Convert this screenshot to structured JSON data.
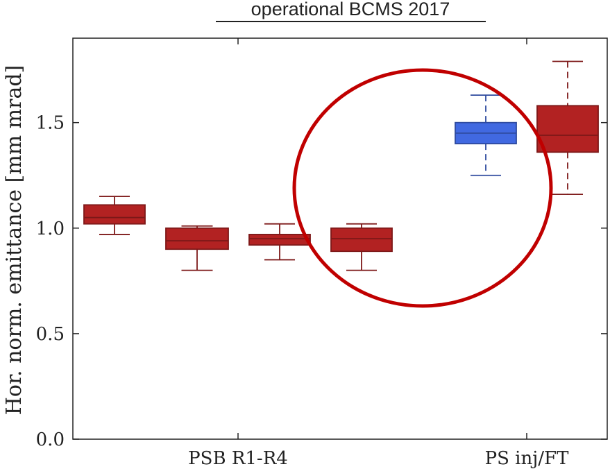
{
  "chart_data": {
    "type": "box",
    "title": "operational BCMS 2017",
    "xlabel": "",
    "ylabel": "Hor. norm. emittance [mm mrad]",
    "ylim": [
      0.0,
      1.9
    ],
    "yticks": [
      0.0,
      0.5,
      1.0,
      1.5
    ],
    "ytick_labels": [
      "0.0",
      "0.5",
      "1.0",
      "1.5"
    ],
    "categories": [
      "PSB R1-R4",
      "PS inj/FT"
    ],
    "grid": false,
    "boxes": [
      {
        "group": "PSB R1-R4",
        "color": "#b22222",
        "whisker_low": 0.97,
        "q1": 1.02,
        "median": 1.05,
        "q3": 1.11,
        "whisker_high": 1.15
      },
      {
        "group": "PSB R1-R4",
        "color": "#b22222",
        "whisker_low": 0.8,
        "q1": 0.9,
        "median": 0.94,
        "q3": 1.0,
        "whisker_high": 1.01
      },
      {
        "group": "PSB R1-R4",
        "color": "#b22222",
        "whisker_low": 0.85,
        "q1": 0.92,
        "median": 0.95,
        "q3": 0.97,
        "whisker_high": 1.02
      },
      {
        "group": "PSB R1-R4",
        "color": "#b22222",
        "whisker_low": 0.8,
        "q1": 0.89,
        "median": 0.95,
        "q3": 1.0,
        "whisker_high": 1.02
      },
      {
        "group": "PS inj/FT",
        "color": "#4169e1",
        "whisker_low": 1.25,
        "q1": 1.4,
        "median": 1.45,
        "q3": 1.5,
        "whisker_high": 1.63
      },
      {
        "group": "PS inj/FT",
        "color": "#b22222",
        "whisker_low": 1.16,
        "q1": 1.36,
        "median": 1.44,
        "q3": 1.58,
        "whisker_high": 1.79
      }
    ],
    "annotation": {
      "shape": "ellipse",
      "color": "#c00000"
    }
  }
}
